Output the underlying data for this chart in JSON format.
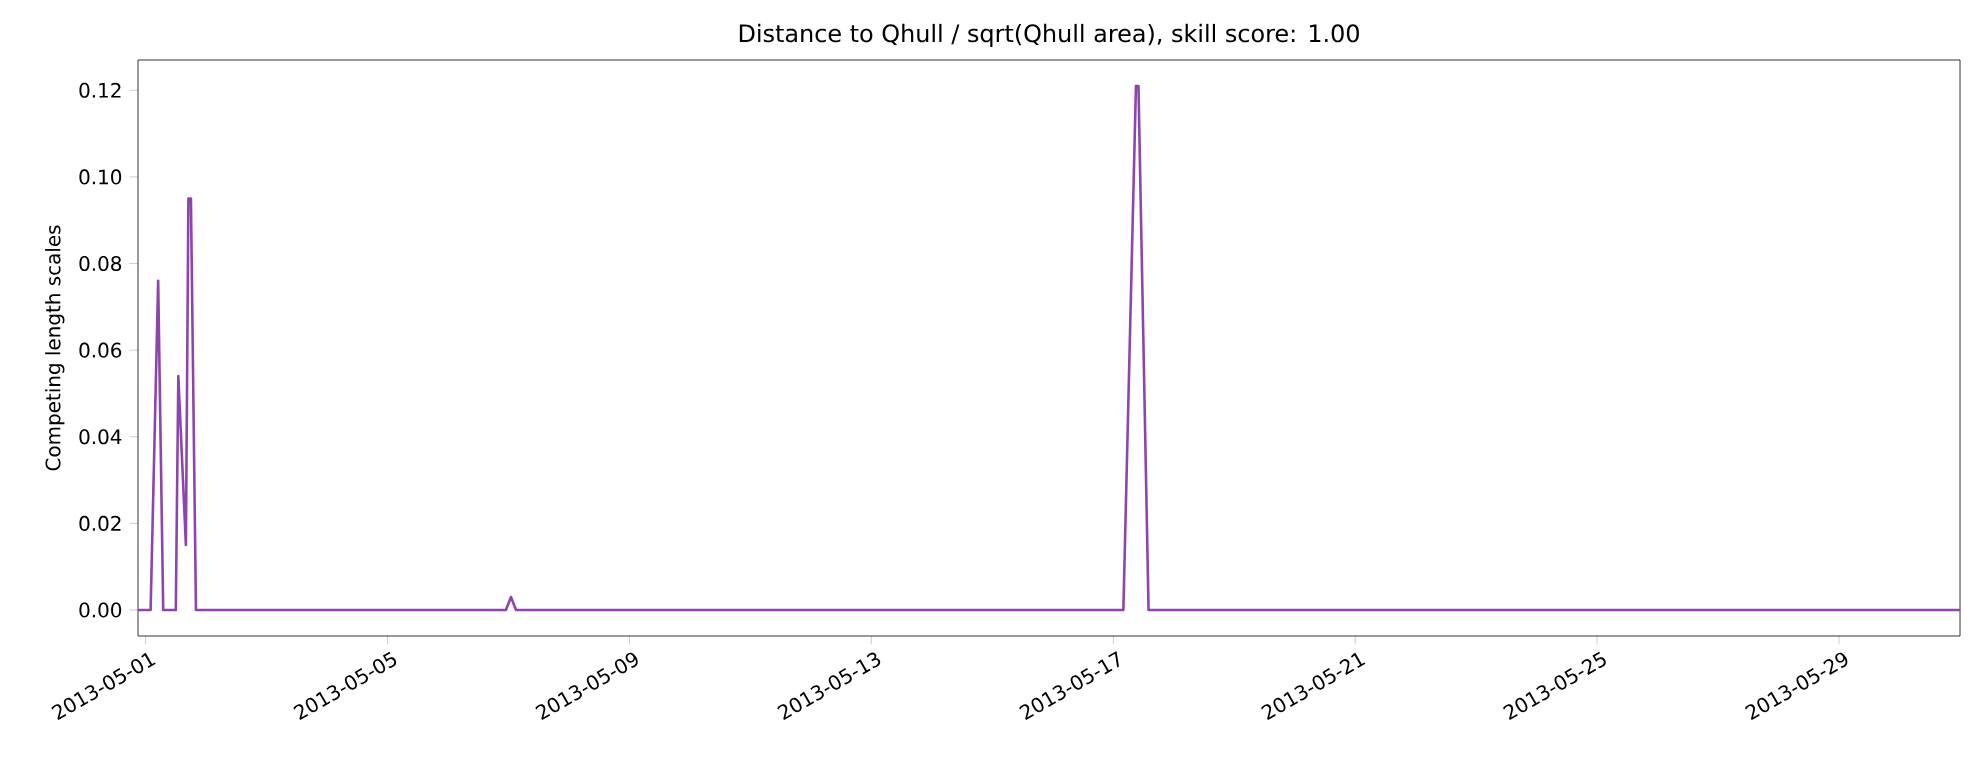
{
  "chart_data": {
    "type": "line",
    "title": "Distance to Qhull / sqrt(Qhull area), skill score: 1.00",
    "ylabel": "Competing length scales",
    "xlim": [
      "2013-04-30T21:00",
      "2013-05-31T00:00"
    ],
    "xticks": [
      "2013-05-01",
      "2013-05-05",
      "2013-05-09",
      "2013-05-13",
      "2013-05-17",
      "2013-05-21",
      "2013-05-25",
      "2013-05-29"
    ],
    "ylim": [
      -0.006,
      0.127
    ],
    "yticks": [
      {
        "value": 0,
        "label": "0.00"
      },
      {
        "value": 0.02,
        "label": "0.02"
      },
      {
        "value": 0.04,
        "label": "0.04"
      },
      {
        "value": 0.06,
        "label": "0.06"
      },
      {
        "value": 0.08,
        "label": "0.08"
      },
      {
        "value": 0.1,
        "label": "0.10"
      },
      {
        "value": 0.12,
        "label": "0.12"
      }
    ],
    "grid": false,
    "marker": "none",
    "line_style": "solid",
    "series": [
      {
        "color": "#8e44ad",
        "x": [
          "2013-04-30T21:00",
          "2013-05-01T02:00",
          "2013-05-01T05:00",
          "2013-05-01T07:00",
          "2013-05-01T12:00",
          "2013-05-01T13:00",
          "2013-05-01T16:00",
          "2013-05-01T17:00",
          "2013-05-01T18:00",
          "2013-05-01T20:00",
          "2013-05-06T23:00",
          "2013-05-07T01:00",
          "2013-05-07T03:00",
          "2013-05-17T04:00",
          "2013-05-17T09:00",
          "2013-05-17T10:00",
          "2013-05-17T14:00",
          "2013-05-31T00:00"
        ],
        "values": [
          0,
          0,
          0.076,
          0,
          0,
          0.054,
          0.015,
          0.095,
          0.095,
          0,
          0,
          0.003,
          0,
          0,
          0.121,
          0.121,
          0,
          0
        ]
      }
    ]
  }
}
